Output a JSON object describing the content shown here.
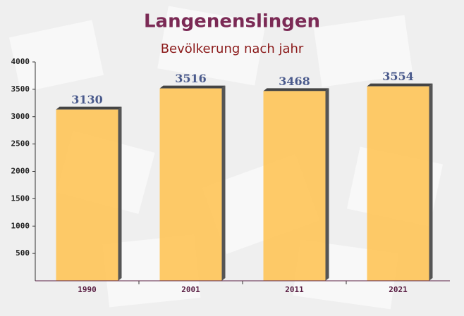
{
  "chart_data": {
    "type": "bar",
    "title": "Langenenslingen",
    "subtitle": "Bevölkerung nach jahr",
    "categories": [
      "1990",
      "2001",
      "2011",
      "2021"
    ],
    "values": [
      3130,
      3516,
      3468,
      3554
    ],
    "color": "#ffc24f",
    "ylim": [
      0,
      4000
    ],
    "yticks": [
      500,
      1000,
      1500,
      2000,
      2500,
      3000,
      3500,
      4000
    ],
    "grid": false
  }
}
